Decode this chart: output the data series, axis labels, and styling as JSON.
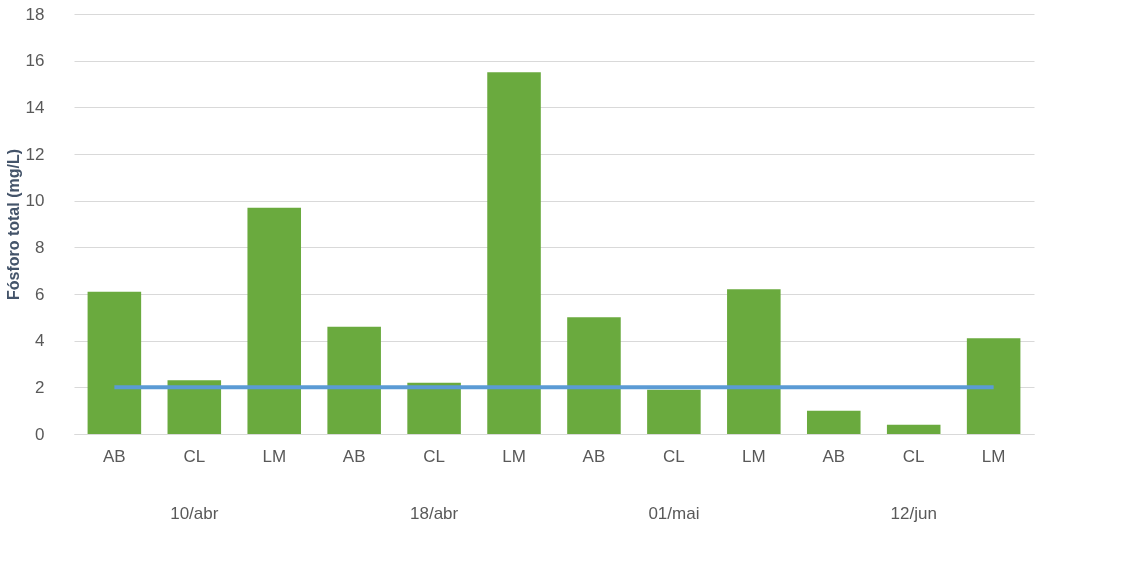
{
  "chart_data": {
    "type": "bar",
    "ylabel": "Fósforo total (mg/L)",
    "categories": [
      "AB",
      "CL",
      "LM",
      "AB",
      "CL",
      "LM",
      "AB",
      "CL",
      "LM",
      "AB",
      "CL",
      "LM"
    ],
    "series": [
      {
        "color": "#6aaa3e",
        "values": [
          6.1,
          2.3,
          9.7,
          4.6,
          2.2,
          15.5,
          5.0,
          1.9,
          6.2,
          1.0,
          0.4,
          4.1
        ]
      },
      {
        "type": "line",
        "color": "#5b9bd5",
        "values": [
          2,
          2,
          2,
          2,
          2,
          2,
          2,
          2,
          2,
          2,
          2,
          2
        ],
        "marker": "none"
      }
    ],
    "annotations": [
      "10/abr",
      "18/abr",
      "01/mai",
      "12/jun"
    ],
    "ylim": [
      0,
      18
    ],
    "yticks": [
      0,
      2,
      4,
      6,
      8,
      10,
      12,
      14,
      16,
      18
    ],
    "grid": "y"
  }
}
